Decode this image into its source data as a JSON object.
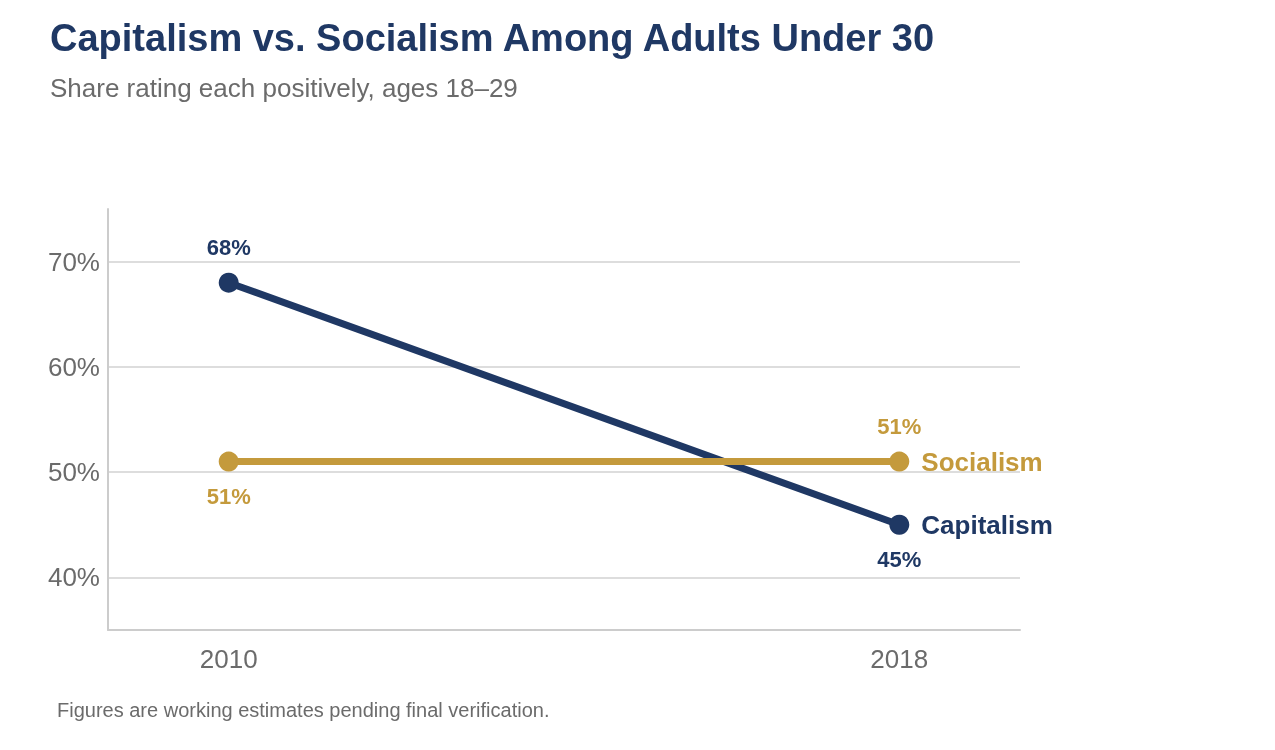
{
  "chart_data": {
    "type": "line",
    "title": "Capitalism vs. Socialism Among Adults Under 30",
    "subtitle": "Share rating each positively, ages 18–29",
    "x": [
      2010,
      2018
    ],
    "xlim": [
      2008.56,
      2019.44
    ],
    "xticks": [
      {
        "value": 2010,
        "label": "2010"
      },
      {
        "value": 2018,
        "label": "2018"
      }
    ],
    "ylim": [
      35,
      75
    ],
    "yticks": [
      {
        "value": 40,
        "label": "40%"
      },
      {
        "value": 50,
        "label": "50%"
      },
      {
        "value": 60,
        "label": "60%"
      },
      {
        "value": 70,
        "label": "70%"
      }
    ],
    "series": [
      {
        "name": "Capitalism",
        "color": "#1f3864",
        "values": [
          68,
          45
        ],
        "value_labels": [
          "68%",
          "45%"
        ]
      },
      {
        "name": "Socialism",
        "color": "#c49a3c",
        "values": [
          51,
          51
        ],
        "value_labels": [
          "51%",
          "51%"
        ]
      }
    ],
    "grid": "y",
    "legend": false,
    "marker": "circle",
    "line_style": "solid",
    "annotations": [
      "Figures are working estimates pending final verification."
    ]
  }
}
